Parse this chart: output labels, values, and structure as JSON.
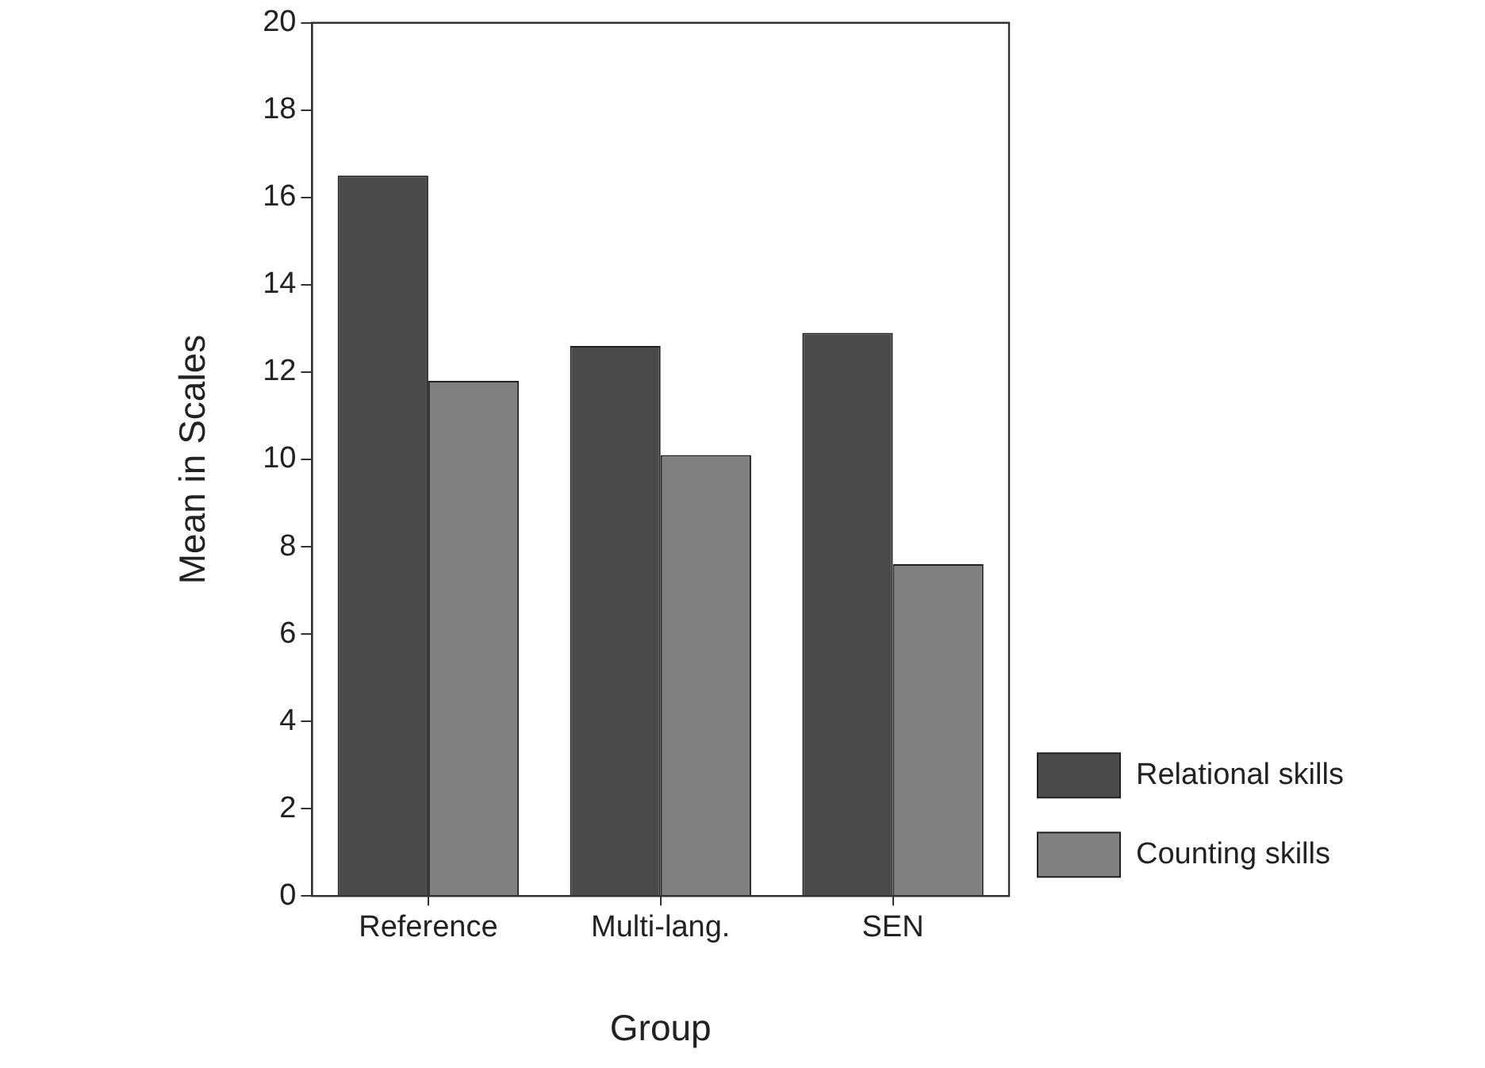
{
  "chart_data": {
    "type": "bar",
    "xlabel": "Group",
    "ylabel": "Mean in Scales",
    "categories": [
      "Reference",
      "Multi-lang.",
      "SEN"
    ],
    "series": [
      {
        "name": "Relational skills",
        "color": "#4a4a4a",
        "values": [
          16.5,
          12.6,
          12.9
        ]
      },
      {
        "name": "Counting skills",
        "color": "#808080",
        "values": [
          11.8,
          10.1,
          7.6
        ]
      }
    ],
    "ylim": [
      0,
      20
    ],
    "yticks": [
      0,
      2,
      4,
      6,
      8,
      10,
      12,
      14,
      16,
      18,
      20
    ],
    "grid": false,
    "legend": "bottom right"
  }
}
